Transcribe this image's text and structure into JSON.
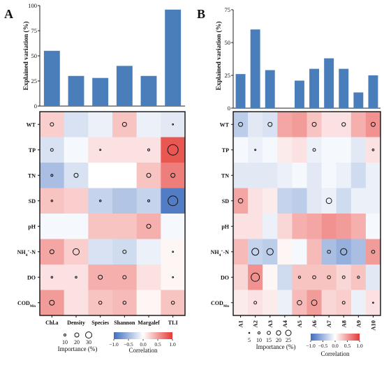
{
  "panels": [
    {
      "letter": "A",
      "bar_ylabel": "Explained variation (%)",
      "legend_importance_label": "Importance (%)",
      "legend_correlation_label": "Correlation",
      "legend_importance_values": [
        "10",
        "20",
        "30"
      ],
      "legend_correlation_ticks": [
        "−1.0",
        "−0.5",
        "0.0",
        "0.5",
        "1.0"
      ]
    },
    {
      "letter": "B",
      "bar_ylabel": "Explained variation (%)",
      "legend_importance_label": "Importance (%)",
      "legend_correlation_label": "Correlation",
      "legend_importance_values": [
        "5",
        "10",
        "15",
        "20",
        "25"
      ],
      "legend_correlation_ticks": [
        "−1.0",
        "−0.5",
        "0.0",
        "0.5",
        "1.0"
      ]
    }
  ],
  "chart_data": [
    {
      "type": "bar",
      "panel": "A",
      "categories": [
        "Chl.a",
        "Density",
        "Species",
        "Shannon",
        "Margalef",
        "TLI"
      ],
      "values": [
        55,
        30,
        28,
        40,
        30,
        96
      ],
      "ylabel": "Explained variation (%)",
      "ylim": [
        0,
        100
      ],
      "yticks": [
        "0",
        "25",
        "50",
        "75",
        "100"
      ],
      "bar_color": "#4a7ebb"
    },
    {
      "type": "heatmap",
      "panel": "A",
      "rows": [
        "WT",
        "TP",
        "TN",
        "SD",
        "pH",
        "NH4+-N",
        "DO",
        "CODMn"
      ],
      "columns": [
        "Chl.a",
        "Density",
        "Species",
        "Shannon",
        "Margalef",
        "TLI"
      ],
      "correlation": [
        [
          0.25,
          -0.2,
          -0.1,
          0.3,
          -0.1,
          -0.15
        ],
        [
          -0.2,
          -0.05,
          0.15,
          0.15,
          0.15,
          0.85
        ],
        [
          -0.45,
          -0.2,
          0.0,
          0.0,
          0.3,
          0.65
        ],
        [
          0.3,
          0.25,
          -0.3,
          -0.4,
          -0.3,
          -0.9
        ],
        [
          -0.05,
          -0.05,
          0.3,
          0.3,
          0.4,
          -0.05
        ],
        [
          0.45,
          0.25,
          -0.2,
          -0.25,
          -0.1,
          0.05
        ],
        [
          0.15,
          0.15,
          0.4,
          0.4,
          0.15,
          0.05
        ],
        [
          0.5,
          0.15,
          0.3,
          0.35,
          0.05,
          0.3
        ]
      ],
      "importance": [
        [
          10,
          0,
          0,
          12,
          0,
          3
        ],
        [
          8,
          0,
          4,
          0,
          6,
          30
        ],
        [
          6,
          12,
          0,
          0,
          12,
          12
        ],
        [
          5,
          0,
          5,
          0,
          6,
          28
        ],
        [
          0,
          0,
          0,
          0,
          12,
          0
        ],
        [
          12,
          18,
          0,
          10,
          0,
          1
        ],
        [
          5,
          5,
          12,
          10,
          0,
          3
        ],
        [
          14,
          0,
          9,
          9,
          0,
          9
        ]
      ],
      "colorbar": {
        "min": -1.0,
        "max": 1.0,
        "ticks": [
          -1.0,
          -0.5,
          0.0,
          0.5,
          1.0
        ],
        "low_color": "#3f6fbf",
        "mid_color": "#ffffff",
        "high_color": "#e53935"
      },
      "importance_legend": [
        10,
        20,
        30
      ]
    },
    {
      "type": "bar",
      "panel": "B",
      "categories": [
        "A1",
        "A2",
        "A3",
        "A4",
        "A5",
        "A6",
        "A7",
        "A8",
        "A9",
        "A10"
      ],
      "values": [
        26,
        60,
        29,
        0,
        21,
        30,
        38,
        30,
        12,
        25
      ],
      "ylabel": "Explained variation (%)",
      "ylim": [
        0,
        75
      ],
      "yticks": [
        "0",
        "25",
        "50",
        "75"
      ],
      "bar_color": "#4a7ebb"
    },
    {
      "type": "heatmap",
      "panel": "B",
      "rows": [
        "WT",
        "TP",
        "TN",
        "SD",
        "pH",
        "NH4+-N",
        "DO",
        "CODMn"
      ],
      "columns": [
        "A1",
        "A2",
        "A3",
        "A4",
        "A5",
        "A6",
        "A7",
        "A8",
        "A9",
        "A10"
      ],
      "correlation": [
        [
          -0.35,
          -0.15,
          -0.2,
          0.45,
          0.5,
          0.3,
          0.15,
          0.15,
          0.4,
          0.55
        ],
        [
          -0.05,
          -0.1,
          -0.05,
          0.1,
          0.15,
          -0.1,
          -0.05,
          -0.05,
          -0.15,
          0.15
        ],
        [
          -0.15,
          -0.15,
          -0.15,
          -0.1,
          -0.05,
          -0.15,
          -0.05,
          -0.1,
          -0.25,
          -0.1
        ],
        [
          0.45,
          0.15,
          0.1,
          -0.3,
          -0.35,
          -0.15,
          -0.1,
          -0.25,
          -0.1,
          -0.1
        ],
        [
          0.15,
          0.15,
          -0.1,
          0.2,
          0.4,
          0.45,
          0.55,
          0.5,
          0.4,
          -0.05
        ],
        [
          0.35,
          -0.3,
          -0.35,
          0.05,
          -0.05,
          0.35,
          -0.45,
          -0.55,
          -0.45,
          0.5
        ],
        [
          0.2,
          0.55,
          0.05,
          -0.25,
          0.3,
          0.3,
          0.3,
          0.2,
          0.3,
          -0.15
        ],
        [
          0.1,
          0.15,
          0.1,
          -0.1,
          0.35,
          0.5,
          0.2,
          0.25,
          -0.1,
          0.15
        ]
      ],
      "importance": [
        [
          9,
          0,
          9,
          0,
          0,
          9,
          0,
          8,
          0,
          9
        ],
        [
          0,
          3,
          0,
          0,
          0,
          6,
          0,
          0,
          0,
          4
        ],
        [
          0,
          0,
          0,
          0,
          0,
          0,
          0,
          0,
          0,
          0
        ],
        [
          10,
          0,
          0,
          0,
          0,
          0,
          12,
          0,
          0,
          0
        ],
        [
          0,
          0,
          0,
          0,
          0,
          0,
          0,
          0,
          0,
          0
        ],
        [
          0,
          15,
          14,
          0,
          0,
          0,
          7,
          14,
          0,
          7
        ],
        [
          0,
          18,
          0,
          0,
          5,
          7,
          7,
          6,
          5,
          0
        ],
        [
          0,
          6,
          0,
          0,
          10,
          12,
          0,
          6,
          0,
          1
        ]
      ],
      "colorbar": {
        "min": -1.0,
        "max": 1.0,
        "ticks": [
          -1.0,
          -0.5,
          0.0,
          0.5,
          1.0
        ],
        "low_color": "#3f6fbf",
        "mid_color": "#ffffff",
        "high_color": "#e53935"
      },
      "importance_legend": [
        5,
        10,
        15,
        20,
        25
      ]
    }
  ]
}
